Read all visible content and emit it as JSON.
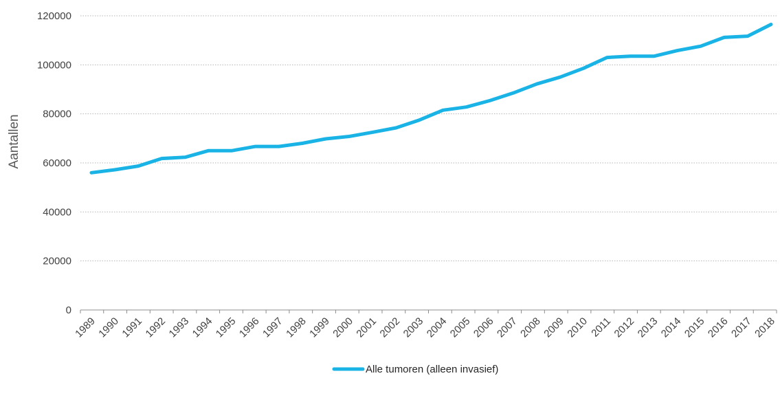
{
  "chart_data": {
    "type": "line",
    "title": "",
    "xlabel": "",
    "ylabel": "Aantallen",
    "ylim": [
      0,
      120000
    ],
    "yticks": [
      0,
      20000,
      40000,
      60000,
      80000,
      100000,
      120000
    ],
    "grid": "horizontal dotted",
    "legend_position": "bottom",
    "x": [
      "1989",
      "1990",
      "1991",
      "1992",
      "1993",
      "1994",
      "1995",
      "1996",
      "1997",
      "1998",
      "1999",
      "2000",
      "2001",
      "2002",
      "2003",
      "2004",
      "2005",
      "2006",
      "2007",
      "2008",
      "2009",
      "2010",
      "2011",
      "2012",
      "2013",
      "2014",
      "2015",
      "2016",
      "2017",
      "2018"
    ],
    "series": [
      {
        "name": "Alle tumoren (alleen invasief)",
        "color": "#1ab3e6",
        "values": [
          56000,
          57200,
          58700,
          61800,
          62300,
          65000,
          65000,
          66700,
          66700,
          68000,
          69800,
          70800,
          72500,
          74300,
          77500,
          81500,
          82800,
          85400,
          88500,
          92200,
          95000,
          98600,
          103000,
          103500,
          103500,
          105800,
          107600,
          111200,
          111700,
          116500
        ]
      }
    ]
  }
}
